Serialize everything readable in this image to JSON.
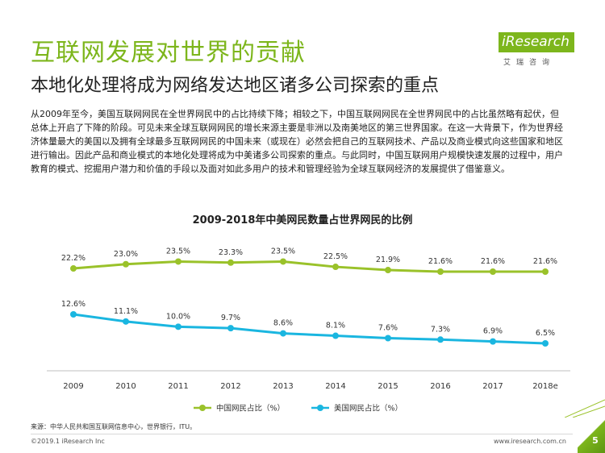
{
  "header": {
    "title": "互联网发展对世界的贡献",
    "subtitle": "本地化处理将成为网络发达地区诸多公司探索的重点"
  },
  "logo": {
    "brand": "iResearch",
    "tagline": "艾瑞咨询"
  },
  "body_text": "从2009年至今，美国互联网网民在全世界网民中的占比持续下降；相较之下，中国互联网网民在全世界网民中的占比虽然略有起伏，但总体上开启了下降的阶段。可见未来全球互联网网民的增长来源主要是非洲以及南美地区的第三世界国家。在这一大背景下，作为世界经济体量最大的美国以及拥有全球最多互联网网民的中国未来（或现在）必然会把自己的互联网技术、产品以及商业模式向这些国家和地区进行输出。因此产品和商业模式的本地化处理将成为中美诸多公司探索的重点。与此同时，中国互联网用户规模快速发展的过程中，用户教育的模式、挖掘用户潜力和价值的手段以及面对如此多用户的技术和管理经验为全球互联网经济的发展提供了借鉴意义。",
  "chart_data": {
    "type": "line",
    "title": "2009-2018年中美网民数量占世界网民的比例",
    "categories": [
      "2009",
      "2010",
      "2011",
      "2012",
      "2013",
      "2014",
      "2015",
      "2016",
      "2017",
      "2018e"
    ],
    "series": [
      {
        "name": "中国网民占比（%）",
        "color": "#9ac22a",
        "values": [
          22.2,
          23.0,
          23.5,
          23.3,
          23.5,
          22.5,
          21.9,
          21.6,
          21.6,
          21.6
        ],
        "labels": [
          "22.2%",
          "23.0%",
          "23.5%",
          "23.3%",
          "23.5%",
          "22.5%",
          "21.9%",
          "21.6%",
          "21.6%",
          "21.6%"
        ]
      },
      {
        "name": "美国网民占比（%）",
        "color": "#1ab6e0",
        "values": [
          12.6,
          11.1,
          10.0,
          9.7,
          8.6,
          8.1,
          7.6,
          7.3,
          6.9,
          6.5
        ],
        "labels": [
          "12.6%",
          "11.1%",
          "10.0%",
          "9.7%",
          "8.6%",
          "8.1%",
          "7.6%",
          "7.3%",
          "6.9%",
          "6.5%"
        ]
      }
    ],
    "xlabel": "",
    "ylabel": "",
    "grid": false,
    "legend": "bottom"
  },
  "source": "来源：中华人民共和国互联网信息中心，世界银行，ITU。",
  "footer": {
    "copyright": "©2019.1 iResearch Inc",
    "website": "www.iresearch.com.cn",
    "page": "5"
  }
}
